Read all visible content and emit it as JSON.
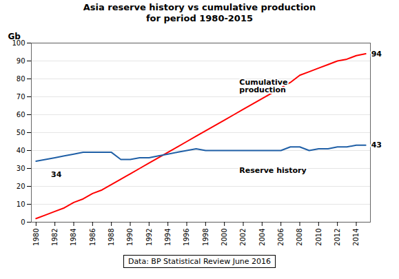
{
  "chart_data": {
    "type": "line",
    "title": "Asia reserve history vs cumulative production",
    "subtitle": "for period 1980-2015",
    "ylabel": "Gb",
    "caption": "Data: BP Statistical Review June 2016",
    "x": [
      1980,
      1981,
      1982,
      1983,
      1984,
      1985,
      1986,
      1987,
      1988,
      1989,
      1990,
      1991,
      1992,
      1993,
      1994,
      1995,
      1996,
      1997,
      1998,
      1999,
      2000,
      2001,
      2002,
      2003,
      2004,
      2005,
      2006,
      2007,
      2008,
      2009,
      2010,
      2011,
      2012,
      2013,
      2014,
      2015
    ],
    "series": [
      {
        "name": "Cumulative production",
        "color": "#ff0000",
        "values": [
          2,
          4,
          6,
          8,
          11,
          13,
          16,
          18,
          21,
          24,
          27,
          30,
          33,
          36,
          39,
          42,
          45,
          48,
          51,
          54,
          57,
          60,
          63,
          66,
          69,
          72,
          75,
          78,
          82,
          84,
          86,
          88,
          90,
          91,
          93,
          94
        ]
      },
      {
        "name": "Reserve history",
        "color": "#1f5fa6",
        "values": [
          34,
          35,
          36,
          37,
          38,
          39,
          39,
          39,
          39,
          35,
          35,
          36,
          36,
          37,
          38,
          39,
          40,
          41,
          40,
          40,
          40,
          40,
          40,
          40,
          40,
          40,
          40,
          42,
          42,
          40,
          41,
          41,
          42,
          42,
          43,
          43
        ]
      }
    ],
    "xlim": [
      1979.5,
      2015.5
    ],
    "xticks": [
      1980,
      1982,
      1984,
      1986,
      1988,
      1990,
      1992,
      1994,
      1996,
      1998,
      2000,
      2002,
      2004,
      2006,
      2008,
      2010,
      2012,
      2014
    ],
    "ylim": [
      0,
      100
    ],
    "yticks": [
      0,
      10,
      20,
      30,
      40,
      50,
      60,
      70,
      80,
      90,
      100
    ],
    "grid": true,
    "annotations": [
      {
        "text": "94",
        "x": 2015,
        "y": 94
      },
      {
        "text": "43",
        "x": 2015,
        "y": 43
      },
      {
        "text": "34",
        "x": 1981,
        "y": 26.5
      },
      {
        "text": "Cumulative\nproduction",
        "x": 2001,
        "y": 76
      },
      {
        "text": "Reserve history",
        "x": 2001,
        "y": 29
      }
    ]
  }
}
